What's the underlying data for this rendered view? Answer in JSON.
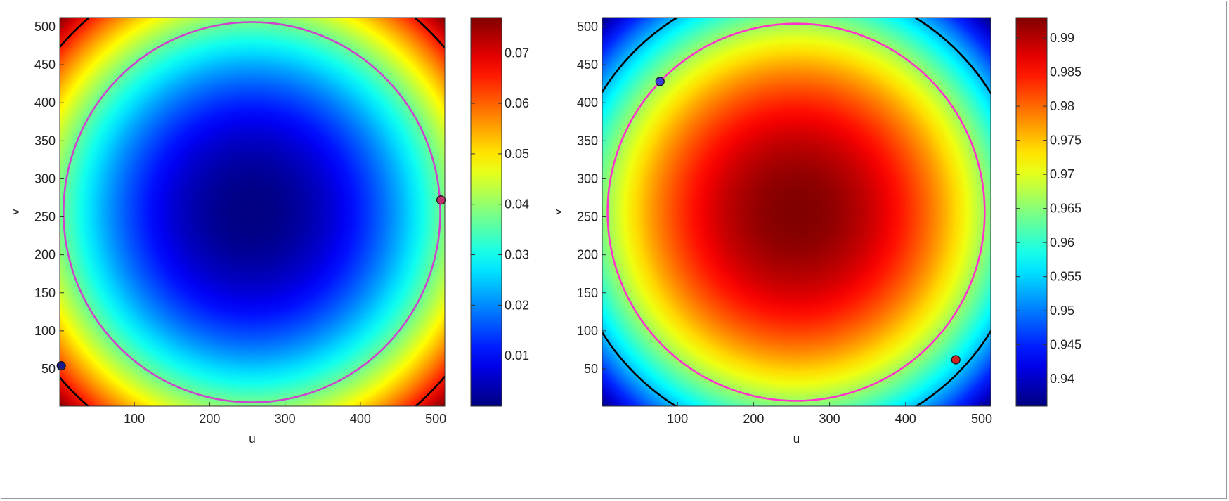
{
  "chart_data": [
    {
      "type": "heatmap",
      "title": "",
      "xlabel": "u",
      "ylabel": "v",
      "xlim": [
        1,
        512
      ],
      "ylim": [
        1,
        512
      ],
      "xticks": [
        100,
        200,
        300,
        400,
        500
      ],
      "yticks": [
        50,
        100,
        150,
        200,
        250,
        300,
        350,
        400,
        450,
        500
      ],
      "colormap": "jet",
      "colorbar": {
        "min": 0,
        "max": 0.077,
        "ticks": [
          0.01,
          0.02,
          0.03,
          0.04,
          0.05,
          0.06,
          0.07
        ]
      },
      "field": {
        "shape": "radial",
        "center": [
          256,
          256
        ],
        "corner_value": 0.077,
        "center_value": 0
      },
      "contours": [
        {
          "name": "",
          "color": "#cc44cc",
          "shape": "circle",
          "center": [
            256,
            256
          ],
          "radius": 250
        },
        {
          "name": "",
          "color": "#000000",
          "shape": "circle",
          "center": [
            256,
            256
          ],
          "radius": 335
        }
      ],
      "markers": [
        {
          "x": 3,
          "y": 54,
          "color": "#1a1a8c"
        },
        {
          "x": 507,
          "y": 272,
          "color": "#c0306a"
        }
      ]
    },
    {
      "type": "heatmap",
      "title": "",
      "xlabel": "u",
      "ylabel": "v",
      "xlim": [
        1,
        512
      ],
      "ylim": [
        1,
        512
      ],
      "xticks": [
        100,
        200,
        300,
        400,
        500
      ],
      "yticks": [
        50,
        100,
        150,
        200,
        250,
        300,
        350,
        400,
        450,
        500
      ],
      "colormap": "jet",
      "colorbar": {
        "min": 0.936,
        "max": 0.993,
        "ticks": [
          0.94,
          0.945,
          0.95,
          0.955,
          0.96,
          0.965,
          0.97,
          0.975,
          0.98,
          0.985,
          0.99
        ]
      },
      "field": {
        "shape": "radial",
        "center": [
          256,
          256
        ],
        "corner_value": 0.936,
        "center_value": 0.993
      },
      "contours": [
        {
          "name": "",
          "color": "#ff33cc",
          "shape": "circle",
          "center": [
            256,
            256
          ],
          "radius": 248
        },
        {
          "name": "",
          "color": "#000000",
          "shape": "circle",
          "center": [
            256,
            256
          ],
          "radius": 300
        }
      ],
      "markers": [
        {
          "x": 77,
          "y": 428,
          "color": "#3a3ad8"
        },
        {
          "x": 466,
          "y": 62,
          "color": "#cc2222"
        }
      ]
    }
  ]
}
